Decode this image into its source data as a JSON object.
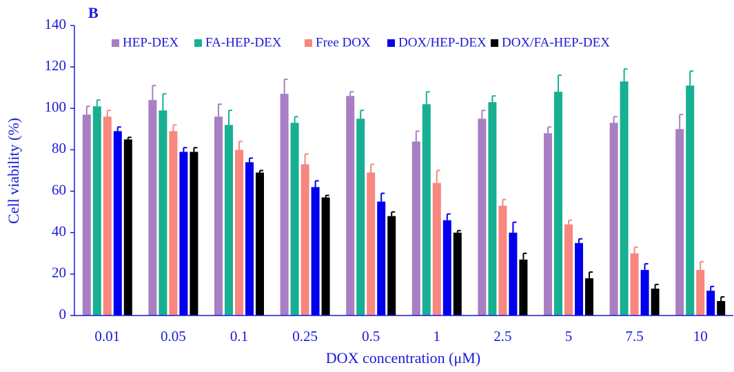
{
  "chart_data": {
    "type": "bar",
    "title": "B",
    "x_label": "DOX concentration (μM)",
    "y_label": "Cell viability (%)",
    "categories": [
      "0.01",
      "0.05",
      "0.1",
      "0.25",
      "0.5",
      "1",
      "2.5",
      "5",
      "7.5",
      "10"
    ],
    "series": [
      {
        "name": "HEP-DEX",
        "color": "#a77fc2",
        "values": [
          97,
          104,
          96,
          107,
          106,
          84,
          95,
          88,
          93,
          90
        ],
        "errors": [
          4,
          7,
          6,
          7,
          2,
          5,
          4,
          3,
          3,
          7
        ]
      },
      {
        "name": "FA-HEP-DEX",
        "color": "#17b092",
        "values": [
          101,
          99,
          92,
          93,
          95,
          102,
          103,
          108,
          113,
          111
        ],
        "errors": [
          3,
          8,
          7,
          3,
          4,
          6,
          3,
          8,
          6,
          7
        ]
      },
      {
        "name": "Free DOX",
        "color": "#f7877f",
        "values": [
          96,
          89,
          80,
          73,
          69,
          64,
          53,
          44,
          30,
          22
        ],
        "errors": [
          3,
          3,
          4,
          5,
          4,
          6,
          3,
          2,
          3,
          4
        ]
      },
      {
        "name": "DOX/HEP-DEX",
        "color": "#0000ee",
        "values": [
          89,
          79,
          74,
          62,
          55,
          46,
          40,
          35,
          22,
          12
        ],
        "errors": [
          2,
          2,
          2,
          3,
          4,
          3,
          5,
          2,
          3,
          2
        ]
      },
      {
        "name": "DOX/FA-HEP-DEX",
        "color": "#000000",
        "values": [
          85,
          79,
          69,
          57,
          48,
          40,
          27,
          18,
          13,
          7
        ],
        "errors": [
          1,
          2,
          1,
          1,
          2,
          1,
          3,
          3,
          2,
          2
        ]
      }
    ],
    "ylim": [
      0,
      140
    ],
    "yticks": [
      0,
      20,
      40,
      60,
      80,
      100,
      120,
      140
    ],
    "legend": "top"
  }
}
